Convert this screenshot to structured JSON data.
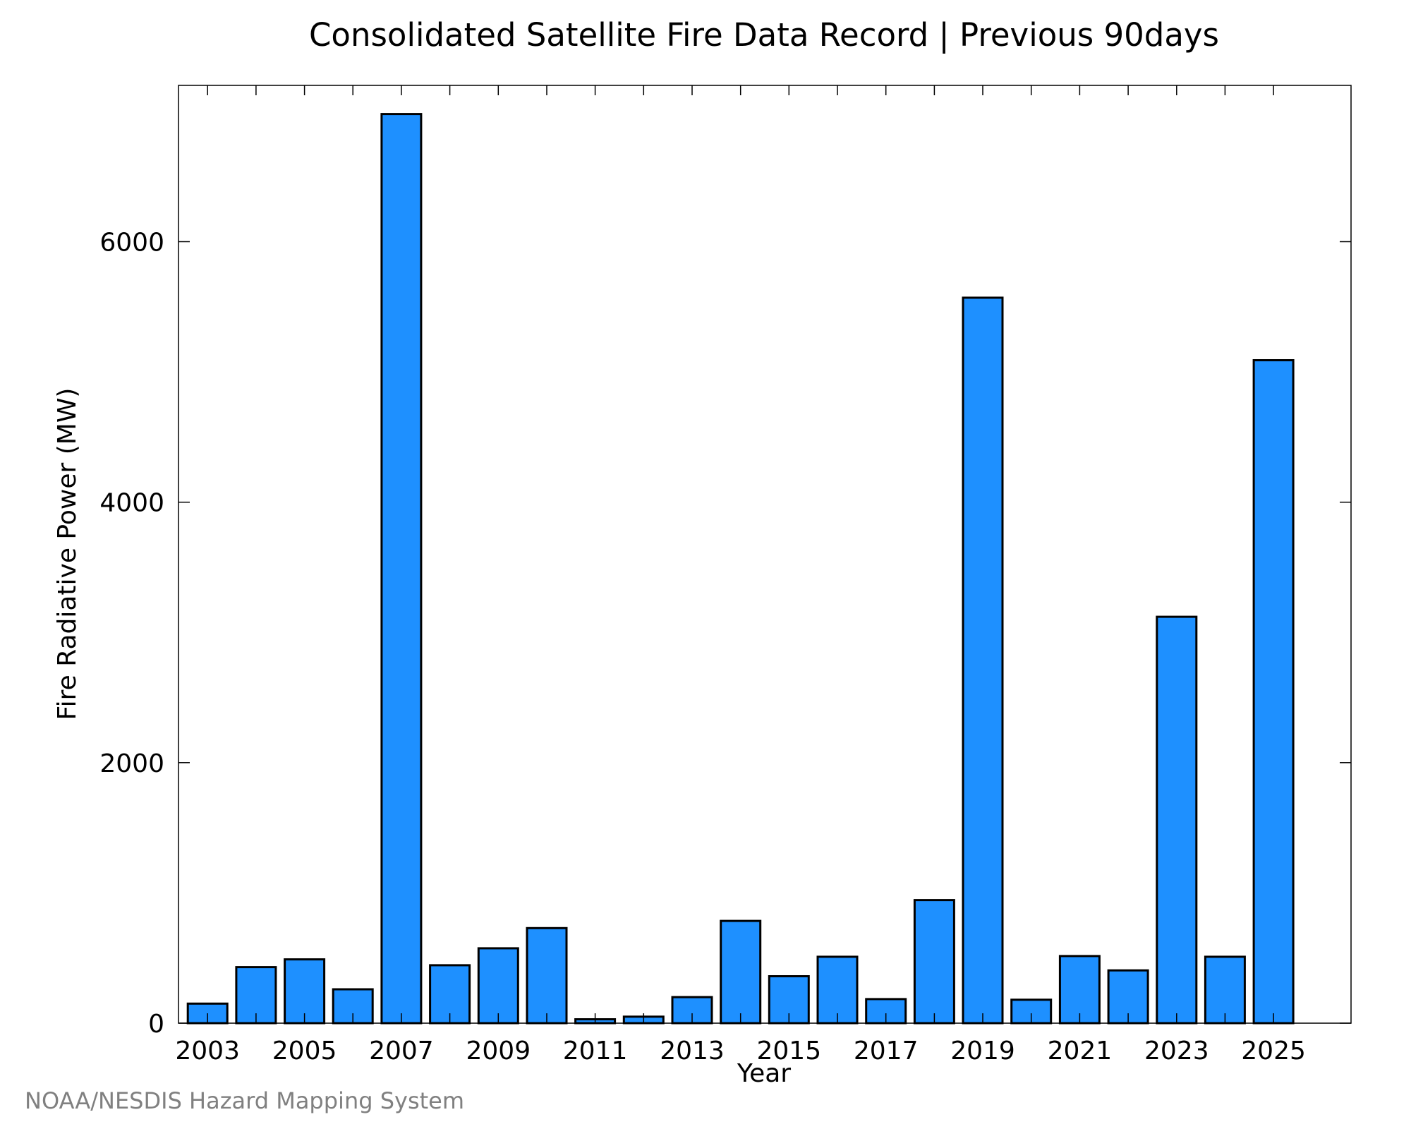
{
  "chart_data": {
    "type": "bar",
    "title": "Consolidated Satellite Fire Data Record | Previous 90days",
    "xlabel": "Year",
    "ylabel": "Fire Radiative Power (MW)",
    "categories": [
      "2003",
      "2004",
      "2005",
      "2006",
      "2007",
      "2008",
      "2009",
      "2010",
      "2011",
      "2012",
      "2013",
      "2014",
      "2015",
      "2016",
      "2017",
      "2018",
      "2019",
      "2020",
      "2021",
      "2022",
      "2023",
      "2024",
      "2025"
    ],
    "x_tick_labels": [
      "2003",
      "2005",
      "2007",
      "2009",
      "2011",
      "2013",
      "2015",
      "2017",
      "2019",
      "2021",
      "2023",
      "2025"
    ],
    "values": [
      150,
      430,
      490,
      260,
      6980,
      445,
      575,
      730,
      30,
      50,
      200,
      785,
      360,
      510,
      185,
      945,
      5570,
      180,
      515,
      405,
      3120,
      510,
      5090
    ],
    "ylim": [
      0,
      7200
    ],
    "y_ticks": [
      0,
      2000,
      4000,
      6000
    ],
    "bar_color": "#1e90ff",
    "grid": false,
    "legend": "none"
  },
  "credit": "NOAA/NESDIS Hazard Mapping System"
}
